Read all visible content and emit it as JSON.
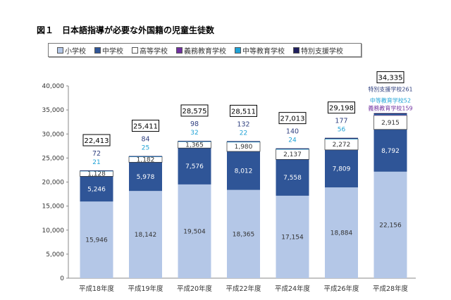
{
  "chart_data": {
    "type": "bar",
    "stacked": true,
    "title": "図１　日本語指導が必要な外国籍の児童生徒数",
    "categories": [
      "平成18年度",
      "平成19年度",
      "平成20年度",
      "平成22年度",
      "平成24年度",
      "平成26年度",
      "平成28年度"
    ],
    "series": [
      {
        "name": "小学校",
        "color": "#b4c7e7",
        "values": [
          15946,
          18142,
          19504,
          18365,
          17154,
          18884,
          22156
        ]
      },
      {
        "name": "中学校",
        "color": "#2f5597",
        "values": [
          5246,
          5978,
          7576,
          8012,
          7558,
          7809,
          8792
        ]
      },
      {
        "name": "高等学校",
        "color": "#ffffff",
        "values": [
          1128,
          1182,
          1365,
          1980,
          2137,
          2272,
          2915
        ]
      },
      {
        "name": "義務教育学校",
        "color": "#7030a0",
        "values": [
          0,
          0,
          0,
          0,
          0,
          0,
          159
        ]
      },
      {
        "name": "中等教育学校",
        "color": "#1fa2d6",
        "values": [
          21,
          25,
          32,
          22,
          24,
          56,
          52
        ]
      },
      {
        "name": "特別支援学校",
        "color": "#1f1f5f",
        "values": [
          72,
          84,
          98,
          132,
          140,
          177,
          261
        ]
      }
    ],
    "totals": [
      22413,
      25411,
      28575,
      28511,
      27013,
      29198,
      34335
    ],
    "last_bar_labels": {
      "special": "特別支援学校",
      "secondary": "中等教育学校",
      "compulsory": "義務教育学校"
    },
    "yticks": [
      "0",
      "5,000",
      "10,000",
      "15,000",
      "20,000",
      "25,000",
      "30,000",
      "35,000",
      "40,000"
    ],
    "ylim": [
      0,
      40000
    ],
    "legend": "top"
  }
}
